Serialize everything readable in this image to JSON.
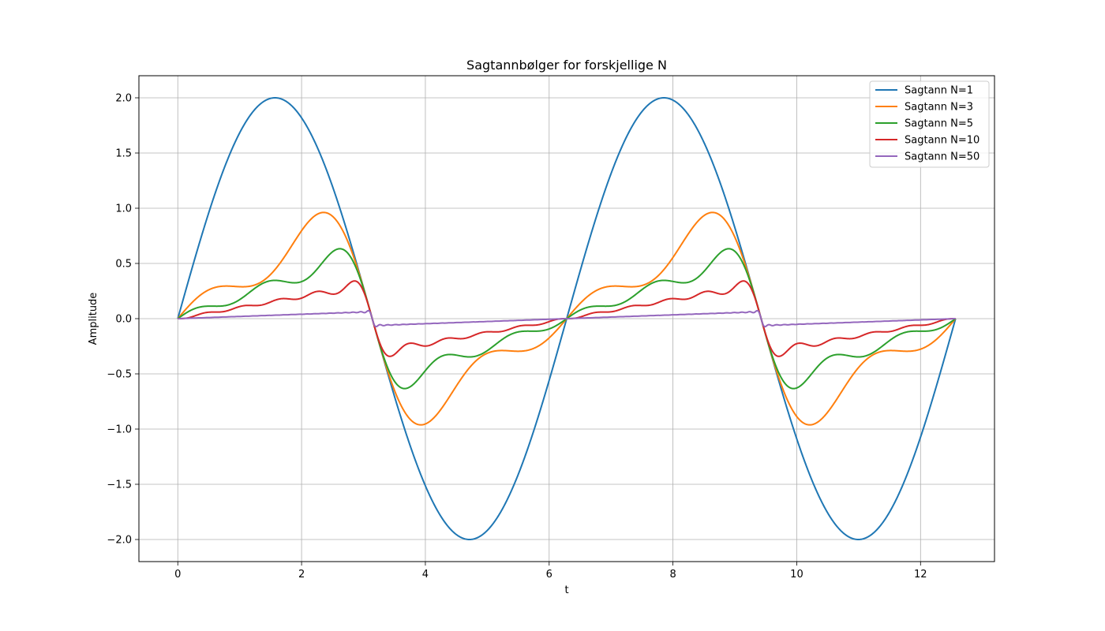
{
  "chart_data": {
    "type": "line",
    "title": "Sagtannbølger for forskjellige N",
    "xlabel": "t",
    "ylabel": "Amplitude",
    "xlim": [
      -0.628,
      13.195
    ],
    "ylim": [
      -2.2,
      2.2
    ],
    "xticks": [
      0,
      2,
      4,
      6,
      8,
      10,
      12
    ],
    "xtick_labels": [
      "0",
      "2",
      "4",
      "6",
      "8",
      "10",
      "12"
    ],
    "yticks": [
      -2.0,
      -1.5,
      -1.0,
      -0.5,
      0.0,
      0.5,
      1.0,
      1.5,
      2.0
    ],
    "ytick_labels": [
      "−2.0",
      "−1.5",
      "−1.0",
      "−0.5",
      "0.0",
      "0.5",
      "1.0",
      "1.5",
      "2.0"
    ],
    "grid": true,
    "legend_position": "top-right",
    "t_range": [
      0,
      12.566
    ],
    "series": [
      {
        "name": "Sagtann N=1",
        "N": 1,
        "color": "#1f77b4"
      },
      {
        "name": "Sagtann N=3",
        "N": 3,
        "color": "#ff7f0e"
      },
      {
        "name": "Sagtann N=5",
        "N": 5,
        "color": "#2ca02c"
      },
      {
        "name": "Sagtann N=10",
        "N": 10,
        "color": "#d62728"
      },
      {
        "name": "Sagtann N=50",
        "N": 50,
        "color": "#9467bd"
      }
    ]
  }
}
